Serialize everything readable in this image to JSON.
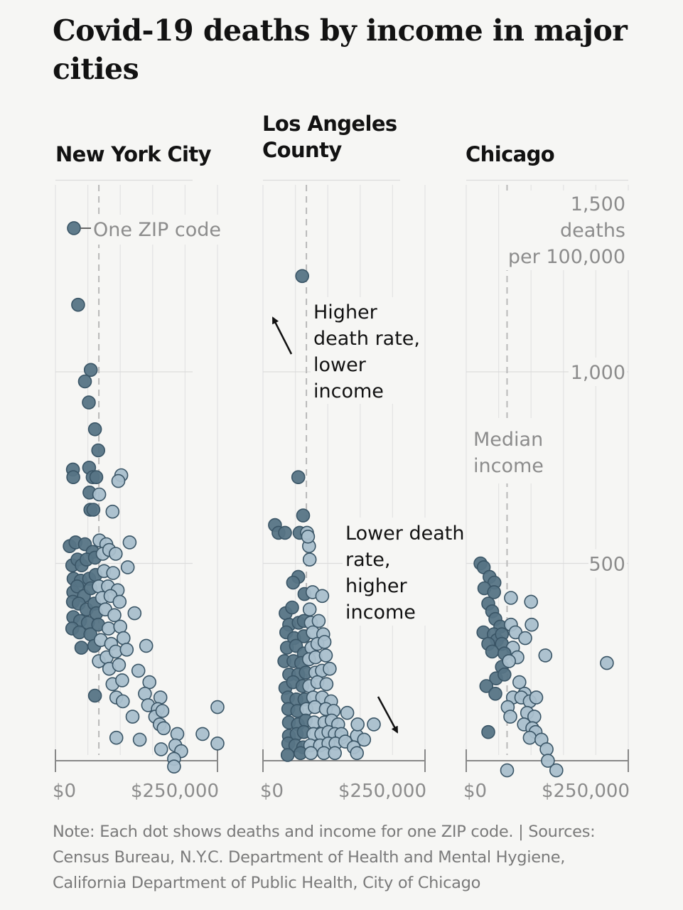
{
  "title": "Covid-19 deaths by income in major cities",
  "note": "Note: Each dot shows deaths and income for one ZIP code. | Sources: Census Bureau, N.Y.C. Department of Health and Mental Hygiene, California Department of Public Health, City of Chicago",
  "colors": {
    "background": "#f6f6f4",
    "dot_dark": "#567485",
    "dot_light": "#a9bfcc",
    "dot_stroke": "#3a5566",
    "grid": "#dcdcdc",
    "median_line": "#b9b9b9",
    "text_gray": "#8c8c8c",
    "text_dark": "#121212"
  },
  "chart_data": {
    "type": "scatter",
    "xlabel": "",
    "ylabel": "deaths per 100,000",
    "xlim": [
      0,
      250000
    ],
    "ylim": [
      0,
      1500
    ],
    "x_ticks": [
      {
        "value": 0,
        "label": "$0"
      },
      {
        "value": 250000,
        "label": "$250,000"
      }
    ],
    "y_ticks": [
      {
        "value": 500,
        "label": "500"
      },
      {
        "value": 1000,
        "label": "1,000"
      },
      {
        "value": 1500,
        "label": "1,500"
      }
    ],
    "y_unit_lines": [
      "deaths",
      "per 100,000"
    ],
    "grid": true,
    "panels": [
      {
        "name": "New York City",
        "median_income": 67000,
        "annotations": [
          {
            "text": "One ZIP code",
            "type": "point-label"
          }
        ],
        "points": [
          [
            28500,
            1375
          ],
          [
            35000,
            1175
          ],
          [
            54500,
            1005
          ],
          [
            45500,
            975
          ],
          [
            51500,
            920
          ],
          [
            61000,
            850
          ],
          [
            66000,
            795
          ],
          [
            27000,
            745
          ],
          [
            27500,
            725
          ],
          [
            52000,
            750
          ],
          [
            57500,
            725
          ],
          [
            63000,
            725
          ],
          [
            52500,
            685
          ],
          [
            67500,
            680
          ],
          [
            101500,
            730
          ],
          [
            97000,
            715
          ],
          [
            54000,
            640
          ],
          [
            58500,
            640
          ],
          [
            88000,
            635
          ],
          [
            22000,
            545
          ],
          [
            31000,
            555
          ],
          [
            45500,
            550
          ],
          [
            57500,
            530
          ],
          [
            68000,
            560
          ],
          [
            78500,
            550
          ],
          [
            114500,
            555
          ],
          [
            26000,
            495
          ],
          [
            34000,
            510
          ],
          [
            40500,
            495
          ],
          [
            48000,
            510
          ],
          [
            61000,
            515
          ],
          [
            73000,
            525
          ],
          [
            83000,
            535
          ],
          [
            93000,
            525
          ],
          [
            28000,
            460
          ],
          [
            39000,
            455
          ],
          [
            52000,
            460
          ],
          [
            62000,
            470
          ],
          [
            75000,
            480
          ],
          [
            89000,
            475
          ],
          [
            111500,
            490
          ],
          [
            27500,
            425
          ],
          [
            33500,
            440
          ],
          [
            44000,
            415
          ],
          [
            54500,
            435
          ],
          [
            67000,
            440
          ],
          [
            81000,
            440
          ],
          [
            96000,
            430
          ],
          [
            27000,
            400
          ],
          [
            36000,
            395
          ],
          [
            48000,
            380
          ],
          [
            60000,
            395
          ],
          [
            72000,
            410
          ],
          [
            85000,
            415
          ],
          [
            99000,
            400
          ],
          [
            27500,
            360
          ],
          [
            38000,
            350
          ],
          [
            50000,
            345
          ],
          [
            63000,
            370
          ],
          [
            77000,
            380
          ],
          [
            91000,
            365
          ],
          [
            122000,
            370
          ],
          [
            26000,
            330
          ],
          [
            37000,
            320
          ],
          [
            54000,
            315
          ],
          [
            66000,
            340
          ],
          [
            82000,
            330
          ],
          [
            100000,
            335
          ],
          [
            40000,
            280
          ],
          [
            60000,
            285
          ],
          [
            70000,
            300
          ],
          [
            86000,
            290
          ],
          [
            105000,
            305
          ],
          [
            140000,
            285
          ],
          [
            67000,
            245
          ],
          [
            79000,
            255
          ],
          [
            93000,
            270
          ],
          [
            110000,
            275
          ],
          [
            83000,
            225
          ],
          [
            98000,
            235
          ],
          [
            128000,
            220
          ],
          [
            88000,
            185
          ],
          [
            103000,
            195
          ],
          [
            145000,
            190
          ],
          [
            61000,
            155
          ],
          [
            94000,
            150
          ],
          [
            104000,
            140
          ],
          [
            138000,
            160
          ],
          [
            162000,
            150
          ],
          [
            143000,
            130
          ],
          [
            158000,
            120
          ],
          [
            154000,
            100
          ],
          [
            165000,
            115
          ],
          [
            119000,
            100
          ],
          [
            161000,
            80
          ],
          [
            94000,
            45
          ],
          [
            167000,
            70
          ],
          [
            130000,
            40
          ],
          [
            250000,
            125
          ],
          [
            227000,
            55
          ],
          [
            188000,
            55
          ],
          [
            185000,
            25
          ],
          [
            163000,
            15
          ],
          [
            250000,
            30
          ],
          [
            194000,
            10
          ],
          [
            183000,
            -10
          ],
          [
            183000,
            -30
          ]
        ]
      },
      {
        "name": "Los Angeles County",
        "median_income": 67000,
        "annotations": [
          {
            "text": "Higher death rate, lower income",
            "type": "arrow-up-left"
          },
          {
            "text": "Lower death rate, higher income",
            "type": "arrow-down-right"
          }
        ],
        "points": [
          [
            60500,
            1250
          ],
          [
            54500,
            725
          ],
          [
            62000,
            625
          ],
          [
            18500,
            600
          ],
          [
            24000,
            580
          ],
          [
            34000,
            580
          ],
          [
            56500,
            580
          ],
          [
            68000,
            580
          ],
          [
            71000,
            545
          ],
          [
            69500,
            570
          ],
          [
            72000,
            510
          ],
          [
            54500,
            465
          ],
          [
            46500,
            450
          ],
          [
            64000,
            420
          ],
          [
            76500,
            425
          ],
          [
            35000,
            370
          ],
          [
            45000,
            385
          ],
          [
            72000,
            380
          ],
          [
            91500,
            415
          ],
          [
            40500,
            340
          ],
          [
            55000,
            345
          ],
          [
            63000,
            350
          ],
          [
            74000,
            345
          ],
          [
            86000,
            350
          ],
          [
            36000,
            320
          ],
          [
            48000,
            305
          ],
          [
            63000,
            310
          ],
          [
            77000,
            320
          ],
          [
            93000,
            315
          ],
          [
            37000,
            280
          ],
          [
            51000,
            285
          ],
          [
            63000,
            265
          ],
          [
            75000,
            280
          ],
          [
            84000,
            290
          ],
          [
            95000,
            295
          ],
          [
            33000,
            245
          ],
          [
            47000,
            245
          ],
          [
            59000,
            240
          ],
          [
            71000,
            250
          ],
          [
            81000,
            255
          ],
          [
            97000,
            260
          ],
          [
            40500,
            210
          ],
          [
            54500,
            210
          ],
          [
            66000,
            215
          ],
          [
            81000,
            215
          ],
          [
            91000,
            220
          ],
          [
            103000,
            225
          ],
          [
            34500,
            175
          ],
          [
            46500,
            190
          ],
          [
            61000,
            180
          ],
          [
            71500,
            180
          ],
          [
            84000,
            190
          ],
          [
            98000,
            185
          ],
          [
            38500,
            150
          ],
          [
            51500,
            145
          ],
          [
            64000,
            145
          ],
          [
            77500,
            150
          ],
          [
            91500,
            150
          ],
          [
            105000,
            140
          ],
          [
            39000,
            120
          ],
          [
            53000,
            115
          ],
          [
            67000,
            120
          ],
          [
            80000,
            125
          ],
          [
            97000,
            120
          ],
          [
            109000,
            115
          ],
          [
            130000,
            110
          ],
          [
            40000,
            85
          ],
          [
            54000,
            80
          ],
          [
            66000,
            90
          ],
          [
            79000,
            85
          ],
          [
            95000,
            85
          ],
          [
            106000,
            90
          ],
          [
            116000,
            80
          ],
          [
            40000,
            50
          ],
          [
            52000,
            55
          ],
          [
            63000,
            60
          ],
          [
            78000,
            55
          ],
          [
            90000,
            55
          ],
          [
            101000,
            60
          ],
          [
            111000,
            55
          ],
          [
            121000,
            45
          ],
          [
            145000,
            50
          ],
          [
            156000,
            40
          ],
          [
            171000,
            80
          ],
          [
            146000,
            80
          ],
          [
            121000,
            55
          ],
          [
            39000,
            30
          ],
          [
            50000,
            25
          ],
          [
            62000,
            20
          ],
          [
            73000,
            25
          ],
          [
            88000,
            25
          ],
          [
            101000,
            30
          ],
          [
            112000,
            30
          ],
          [
            127000,
            35
          ],
          [
            140000,
            20
          ],
          [
            38000,
            0
          ],
          [
            58000,
            5
          ],
          [
            74000,
            5
          ],
          [
            94000,
            5
          ],
          [
            111000,
            5
          ],
          [
            145000,
            5
          ]
        ]
      },
      {
        "name": "Chicago",
        "median_income": 63000,
        "annotations": [
          {
            "text": "Median income",
            "type": "median-label"
          }
        ],
        "points": [
          [
            22000,
            500
          ],
          [
            27000,
            490
          ],
          [
            36000,
            465
          ],
          [
            43500,
            450
          ],
          [
            28000,
            435
          ],
          [
            43000,
            425
          ],
          [
            69000,
            410
          ],
          [
            100000,
            400
          ],
          [
            34000,
            395
          ],
          [
            40000,
            375
          ],
          [
            45000,
            355
          ],
          [
            52500,
            335
          ],
          [
            69000,
            340
          ],
          [
            26500,
            320
          ],
          [
            42500,
            315
          ],
          [
            47500,
            300
          ],
          [
            55000,
            315
          ],
          [
            76000,
            320
          ],
          [
            101000,
            340
          ],
          [
            34000,
            290
          ],
          [
            55000,
            290
          ],
          [
            72000,
            280
          ],
          [
            91000,
            305
          ],
          [
            40000,
            270
          ],
          [
            59000,
            265
          ],
          [
            79000,
            255
          ],
          [
            122000,
            260
          ],
          [
            55000,
            230
          ],
          [
            66000,
            245
          ],
          [
            217000,
            240
          ],
          [
            46000,
            200
          ],
          [
            59000,
            210
          ],
          [
            82000,
            190
          ],
          [
            31000,
            180
          ],
          [
            45000,
            160
          ],
          [
            90000,
            160
          ],
          [
            72000,
            150
          ],
          [
            85000,
            150
          ],
          [
            98000,
            140
          ],
          [
            108000,
            150
          ],
          [
            64000,
            125
          ],
          [
            94000,
            110
          ],
          [
            68000,
            100
          ],
          [
            105000,
            100
          ],
          [
            89000,
            80
          ],
          [
            102000,
            70
          ],
          [
            107000,
            60
          ],
          [
            98000,
            45
          ],
          [
            116000,
            40
          ],
          [
            34000,
            60
          ],
          [
            124000,
            15
          ],
          [
            126000,
            -15
          ],
          [
            63000,
            -40
          ],
          [
            139000,
            -40
          ]
        ]
      }
    ]
  }
}
